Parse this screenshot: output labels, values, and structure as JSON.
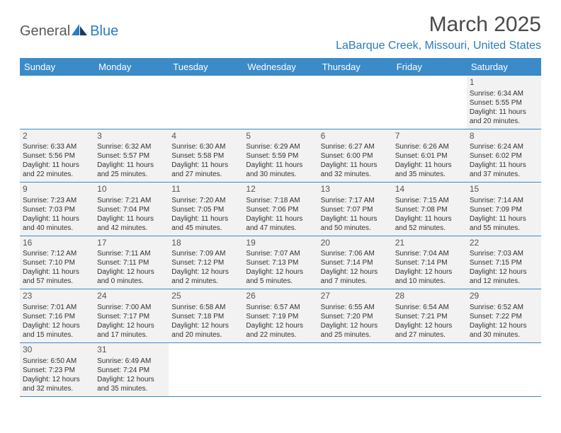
{
  "logo": {
    "part1": "General",
    "part2": "Blue"
  },
  "title": "March 2025",
  "location": "LaBarque Creek, Missouri, United States",
  "colors": {
    "header_bg": "#3b8bc9",
    "header_text": "#ffffff",
    "cell_bg": "#f2f2f2",
    "accent": "#2b7bbf",
    "text": "#333333",
    "title_text": "#4a4a4a"
  },
  "weekdays": [
    "Sunday",
    "Monday",
    "Tuesday",
    "Wednesday",
    "Thursday",
    "Friday",
    "Saturday"
  ],
  "weeks": [
    [
      null,
      null,
      null,
      null,
      null,
      null,
      {
        "n": "1",
        "sr": "Sunrise: 6:34 AM",
        "ss": "Sunset: 5:55 PM",
        "d1": "Daylight: 11 hours",
        "d2": "and 20 minutes."
      }
    ],
    [
      {
        "n": "2",
        "sr": "Sunrise: 6:33 AM",
        "ss": "Sunset: 5:56 PM",
        "d1": "Daylight: 11 hours",
        "d2": "and 22 minutes."
      },
      {
        "n": "3",
        "sr": "Sunrise: 6:32 AM",
        "ss": "Sunset: 5:57 PM",
        "d1": "Daylight: 11 hours",
        "d2": "and 25 minutes."
      },
      {
        "n": "4",
        "sr": "Sunrise: 6:30 AM",
        "ss": "Sunset: 5:58 PM",
        "d1": "Daylight: 11 hours",
        "d2": "and 27 minutes."
      },
      {
        "n": "5",
        "sr": "Sunrise: 6:29 AM",
        "ss": "Sunset: 5:59 PM",
        "d1": "Daylight: 11 hours",
        "d2": "and 30 minutes."
      },
      {
        "n": "6",
        "sr": "Sunrise: 6:27 AM",
        "ss": "Sunset: 6:00 PM",
        "d1": "Daylight: 11 hours",
        "d2": "and 32 minutes."
      },
      {
        "n": "7",
        "sr": "Sunrise: 6:26 AM",
        "ss": "Sunset: 6:01 PM",
        "d1": "Daylight: 11 hours",
        "d2": "and 35 minutes."
      },
      {
        "n": "8",
        "sr": "Sunrise: 6:24 AM",
        "ss": "Sunset: 6:02 PM",
        "d1": "Daylight: 11 hours",
        "d2": "and 37 minutes."
      }
    ],
    [
      {
        "n": "9",
        "sr": "Sunrise: 7:23 AM",
        "ss": "Sunset: 7:03 PM",
        "d1": "Daylight: 11 hours",
        "d2": "and 40 minutes."
      },
      {
        "n": "10",
        "sr": "Sunrise: 7:21 AM",
        "ss": "Sunset: 7:04 PM",
        "d1": "Daylight: 11 hours",
        "d2": "and 42 minutes."
      },
      {
        "n": "11",
        "sr": "Sunrise: 7:20 AM",
        "ss": "Sunset: 7:05 PM",
        "d1": "Daylight: 11 hours",
        "d2": "and 45 minutes."
      },
      {
        "n": "12",
        "sr": "Sunrise: 7:18 AM",
        "ss": "Sunset: 7:06 PM",
        "d1": "Daylight: 11 hours",
        "d2": "and 47 minutes."
      },
      {
        "n": "13",
        "sr": "Sunrise: 7:17 AM",
        "ss": "Sunset: 7:07 PM",
        "d1": "Daylight: 11 hours",
        "d2": "and 50 minutes."
      },
      {
        "n": "14",
        "sr": "Sunrise: 7:15 AM",
        "ss": "Sunset: 7:08 PM",
        "d1": "Daylight: 11 hours",
        "d2": "and 52 minutes."
      },
      {
        "n": "15",
        "sr": "Sunrise: 7:14 AM",
        "ss": "Sunset: 7:09 PM",
        "d1": "Daylight: 11 hours",
        "d2": "and 55 minutes."
      }
    ],
    [
      {
        "n": "16",
        "sr": "Sunrise: 7:12 AM",
        "ss": "Sunset: 7:10 PM",
        "d1": "Daylight: 11 hours",
        "d2": "and 57 minutes."
      },
      {
        "n": "17",
        "sr": "Sunrise: 7:11 AM",
        "ss": "Sunset: 7:11 PM",
        "d1": "Daylight: 12 hours",
        "d2": "and 0 minutes."
      },
      {
        "n": "18",
        "sr": "Sunrise: 7:09 AM",
        "ss": "Sunset: 7:12 PM",
        "d1": "Daylight: 12 hours",
        "d2": "and 2 minutes."
      },
      {
        "n": "19",
        "sr": "Sunrise: 7:07 AM",
        "ss": "Sunset: 7:13 PM",
        "d1": "Daylight: 12 hours",
        "d2": "and 5 minutes."
      },
      {
        "n": "20",
        "sr": "Sunrise: 7:06 AM",
        "ss": "Sunset: 7:14 PM",
        "d1": "Daylight: 12 hours",
        "d2": "and 7 minutes."
      },
      {
        "n": "21",
        "sr": "Sunrise: 7:04 AM",
        "ss": "Sunset: 7:14 PM",
        "d1": "Daylight: 12 hours",
        "d2": "and 10 minutes."
      },
      {
        "n": "22",
        "sr": "Sunrise: 7:03 AM",
        "ss": "Sunset: 7:15 PM",
        "d1": "Daylight: 12 hours",
        "d2": "and 12 minutes."
      }
    ],
    [
      {
        "n": "23",
        "sr": "Sunrise: 7:01 AM",
        "ss": "Sunset: 7:16 PM",
        "d1": "Daylight: 12 hours",
        "d2": "and 15 minutes."
      },
      {
        "n": "24",
        "sr": "Sunrise: 7:00 AM",
        "ss": "Sunset: 7:17 PM",
        "d1": "Daylight: 12 hours",
        "d2": "and 17 minutes."
      },
      {
        "n": "25",
        "sr": "Sunrise: 6:58 AM",
        "ss": "Sunset: 7:18 PM",
        "d1": "Daylight: 12 hours",
        "d2": "and 20 minutes."
      },
      {
        "n": "26",
        "sr": "Sunrise: 6:57 AM",
        "ss": "Sunset: 7:19 PM",
        "d1": "Daylight: 12 hours",
        "d2": "and 22 minutes."
      },
      {
        "n": "27",
        "sr": "Sunrise: 6:55 AM",
        "ss": "Sunset: 7:20 PM",
        "d1": "Daylight: 12 hours",
        "d2": "and 25 minutes."
      },
      {
        "n": "28",
        "sr": "Sunrise: 6:54 AM",
        "ss": "Sunset: 7:21 PM",
        "d1": "Daylight: 12 hours",
        "d2": "and 27 minutes."
      },
      {
        "n": "29",
        "sr": "Sunrise: 6:52 AM",
        "ss": "Sunset: 7:22 PM",
        "d1": "Daylight: 12 hours",
        "d2": "and 30 minutes."
      }
    ],
    [
      {
        "n": "30",
        "sr": "Sunrise: 6:50 AM",
        "ss": "Sunset: 7:23 PM",
        "d1": "Daylight: 12 hours",
        "d2": "and 32 minutes."
      },
      {
        "n": "31",
        "sr": "Sunrise: 6:49 AM",
        "ss": "Sunset: 7:24 PM",
        "d1": "Daylight: 12 hours",
        "d2": "and 35 minutes."
      },
      null,
      null,
      null,
      null,
      null
    ]
  ]
}
